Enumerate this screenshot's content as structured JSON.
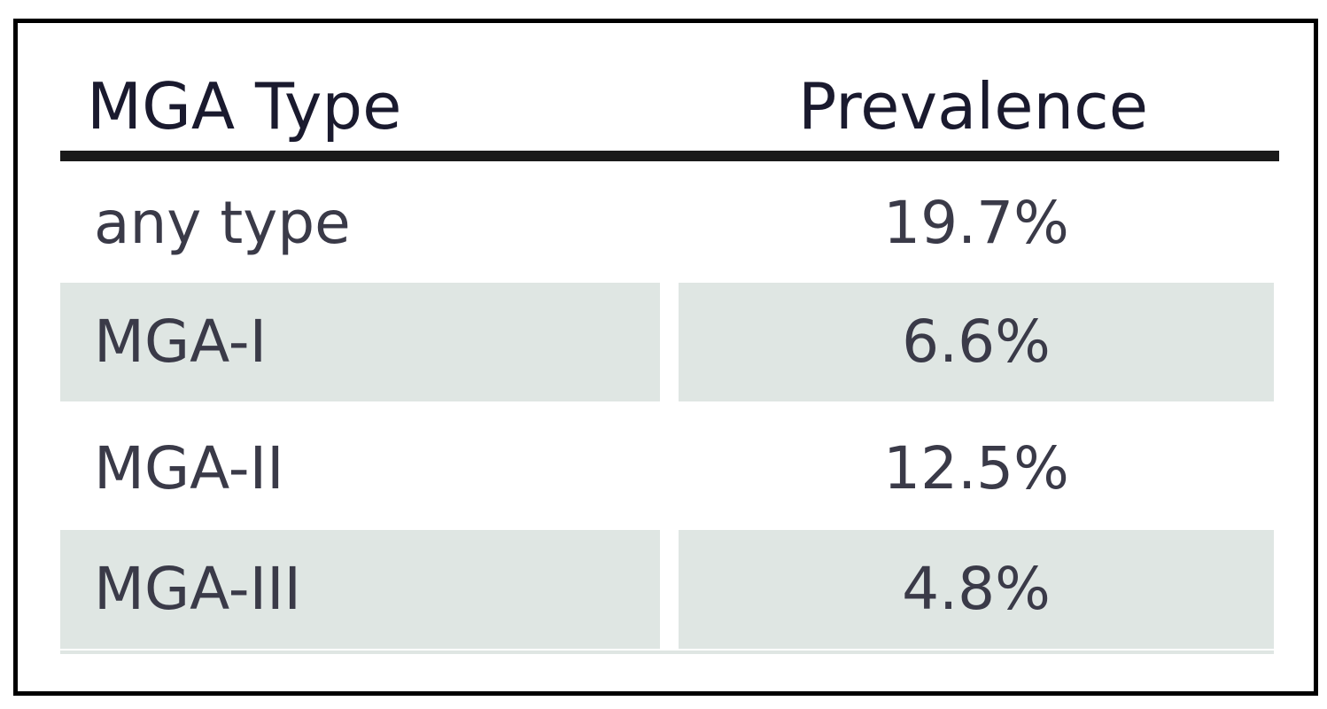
{
  "table": {
    "headers": {
      "type": "MGA Type",
      "prevalence": "Prevalence"
    },
    "rows": [
      {
        "type": "any type",
        "prevalence": "19.7%"
      },
      {
        "type": "MGA-I",
        "prevalence": "6.6%"
      },
      {
        "type": "MGA-II",
        "prevalence": "12.5%"
      },
      {
        "type": "MGA-III",
        "prevalence": "4.8%"
      }
    ]
  },
  "colors": {
    "shaded_row": "#dfe6e3",
    "border": "#000000",
    "text": "#3a3a48"
  }
}
